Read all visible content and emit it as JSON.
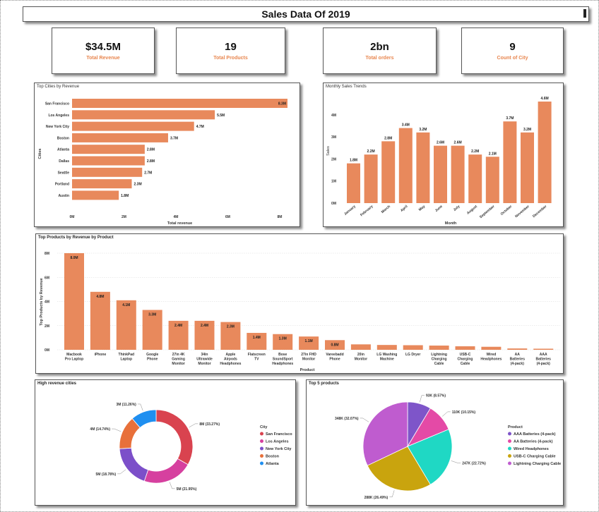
{
  "dashboard": {
    "title": "Sales Data Of 2019",
    "colors": {
      "bar": "#e8895c",
      "kpi_label": "#e8864f"
    }
  },
  "kpis": [
    {
      "value": "$34.5M",
      "label": "Total Revenue"
    },
    {
      "value": "19",
      "label": "Total Products"
    },
    {
      "value": "2bn",
      "label": "Total orders"
    },
    {
      "value": "9",
      "label": "Count of City"
    }
  ],
  "chart_data": [
    {
      "id": "cities",
      "type": "bar",
      "orientation": "horizontal",
      "title": "Top Cities by Revenue",
      "xlabel": "Total revenue",
      "ylabel": "Cities",
      "categories": [
        "San Francisco",
        "Los Angeles",
        "New York City",
        "Boston",
        "Atlanta",
        "Dallas",
        "Seattle",
        "Portland",
        "Austin"
      ],
      "values": [
        8.3,
        5.5,
        4.7,
        3.7,
        2.8,
        2.8,
        2.7,
        2.3,
        1.8
      ],
      "data_labels": [
        "8.3M",
        "5.5M",
        "4.7M",
        "3.7M",
        "2.8M",
        "2.8M",
        "2.7M",
        "2.3M",
        "1.8M"
      ],
      "xticks": [
        "0M",
        "2M",
        "4M",
        "6M",
        "8M"
      ],
      "xlim": [
        0,
        8.3
      ],
      "grid": false
    },
    {
      "id": "monthly",
      "type": "bar",
      "title": "Monthly Sales Trends",
      "xlabel": "Month",
      "ylabel": "Sales",
      "categories": [
        "January",
        "February",
        "March",
        "April",
        "May",
        "June",
        "July",
        "August",
        "September",
        "October",
        "November",
        "December"
      ],
      "values": [
        1.8,
        2.2,
        2.8,
        3.4,
        3.2,
        2.6,
        2.6,
        2.2,
        2.1,
        3.7,
        3.2,
        4.6
      ],
      "data_labels": [
        "1.8M",
        "2.2M",
        "2.8M",
        "3.4M",
        "3.2M",
        "2.6M",
        "2.6M",
        "2.2M",
        "2.1M",
        "3.7M",
        "3.2M",
        "4.6M"
      ],
      "yticks": [
        "0M",
        "1M",
        "2M",
        "3M",
        "4M"
      ],
      "ylim": [
        0,
        4.6
      ],
      "grid": false
    },
    {
      "id": "products",
      "type": "bar",
      "title": "Top Products by Revenue by Product",
      "xlabel": "Product",
      "ylabel": "Top Products by Revenue",
      "categories": [
        "Macbook Pro Laptop",
        "iPhone",
        "ThinkPad Laptop",
        "Google Phone",
        "27in 4K Gaming Monitor",
        "34in Ultrawide Monitor",
        "Apple Airpods Headphones",
        "Flatscreen TV",
        "Bose SoundSport Headphones",
        "27in FHD Monitor",
        "Vareebadd Phone",
        "20in Monitor",
        "LG Washing Machine",
        "LG Dryer",
        "Lightning Charging Cable",
        "USB-C Charging Cable",
        "Wired Headphones",
        "AA Batteries (4-pack)",
        "AAA Batteries (4-pack)"
      ],
      "values": [
        8.0,
        4.8,
        4.1,
        3.3,
        2.4,
        2.4,
        2.3,
        1.4,
        1.3,
        1.1,
        0.8,
        0.45,
        0.4,
        0.38,
        0.35,
        0.29,
        0.25,
        0.11,
        0.09
      ],
      "data_labels": [
        "8.0M",
        "4.8M",
        "4.1M",
        "3.3M",
        "2.4M",
        "2.4M",
        "2.3M",
        "1.4M",
        "1.3M",
        "1.1M",
        "0.8M",
        "",
        "",
        "",
        "",
        "",
        "",
        "",
        ""
      ],
      "yticks": [
        "0M",
        "2M",
        "4M",
        "6M",
        "8M"
      ],
      "ylim": [
        0,
        8.0
      ],
      "grid": true
    },
    {
      "id": "city_donut",
      "type": "pie",
      "donut": true,
      "title": "High revenue cities",
      "legend_title": "City",
      "legend_position": "right",
      "labels": [
        "San Francisco",
        "Los Angeles",
        "New York City",
        "Boston",
        "Atlanta"
      ],
      "values": [
        33.27,
        21.95,
        18.78,
        14.74,
        11.26
      ],
      "data_labels": [
        "8M (33.27%)",
        "5M (21.95%)",
        "5M (18.78%)",
        "4M (14.74%)",
        "3M (11.26%)"
      ],
      "colors": [
        "#d9434f",
        "#d6409f",
        "#7c4fc9",
        "#e8703a",
        "#1f8ff0"
      ]
    },
    {
      "id": "top5_products",
      "type": "pie",
      "title": "Top 5 products",
      "legend_title": "Product",
      "legend_position": "right",
      "labels": [
        "AAA Batteries (4-pack)",
        "AA Batteries (4-pack)",
        "Wired Headphones",
        "USB-C Charging Cable",
        "Lightning Charging Cable"
      ],
      "values": [
        8.57,
        10.15,
        22.72,
        26.49,
        32.07
      ],
      "data_labels": [
        "93K (8.57%)",
        "110K (10.15%)",
        "247K (22.72%)",
        "288K (26.49%)",
        "348K (32.07%)"
      ],
      "colors": [
        "#7e55c9",
        "#e44aa6",
        "#1fd8c4",
        "#c9a40e",
        "#bf5ccf"
      ]
    }
  ]
}
